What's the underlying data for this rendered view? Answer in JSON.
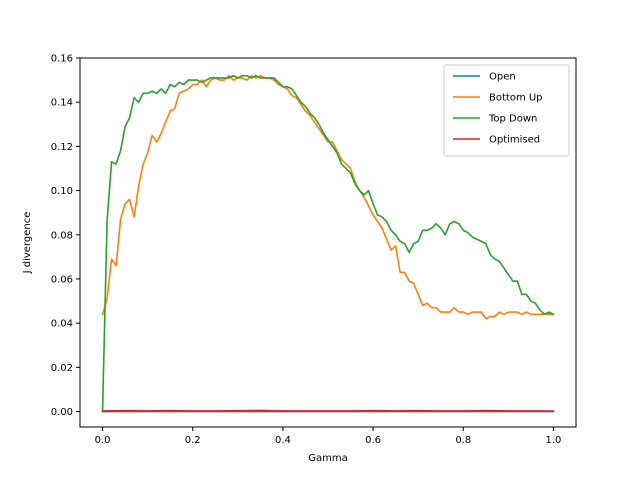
{
  "chart_data": {
    "type": "line",
    "title": "",
    "xlabel": "Gamma",
    "ylabel": "J divergence",
    "xlim": [
      -0.05,
      1.05
    ],
    "ylim": [
      -0.007,
      0.16
    ],
    "xticks": [
      0.0,
      0.2,
      0.4,
      0.6,
      0.8,
      1.0
    ],
    "xtick_labels": [
      "0.0",
      "0.2",
      "0.4",
      "0.6",
      "0.8",
      "1.0"
    ],
    "yticks": [
      0.0,
      0.02,
      0.04,
      0.06,
      0.08,
      0.1,
      0.12,
      0.14,
      0.16
    ],
    "ytick_labels": [
      "0.00",
      "0.02",
      "0.04",
      "0.06",
      "0.08",
      "0.10",
      "0.12",
      "0.14",
      "0.16"
    ],
    "grid": false,
    "legend_position": "top-right",
    "series": [
      {
        "name": "Open",
        "color": "#1f77b4",
        "x": [
          0.0,
          0.1,
          0.2,
          0.3,
          0.4,
          0.5,
          0.6,
          0.7,
          0.8,
          0.9,
          1.0
        ],
        "y": [
          0.0,
          0.0,
          0.0,
          0.0,
          0.0,
          0.0,
          0.0,
          0.0,
          0.0,
          0.0,
          0.0
        ]
      },
      {
        "name": "Bottom Up",
        "color": "#ff7f0e",
        "x": [
          0.0,
          0.01,
          0.02,
          0.03,
          0.04,
          0.05,
          0.06,
          0.07,
          0.08,
          0.09,
          0.1,
          0.11,
          0.12,
          0.13,
          0.14,
          0.15,
          0.16,
          0.17,
          0.18,
          0.19,
          0.2,
          0.21,
          0.22,
          0.23,
          0.24,
          0.25,
          0.26,
          0.27,
          0.28,
          0.29,
          0.3,
          0.31,
          0.32,
          0.33,
          0.34,
          0.35,
          0.36,
          0.37,
          0.38,
          0.39,
          0.4,
          0.41,
          0.42,
          0.43,
          0.44,
          0.45,
          0.46,
          0.47,
          0.48,
          0.49,
          0.5,
          0.51,
          0.52,
          0.53,
          0.54,
          0.55,
          0.56,
          0.57,
          0.58,
          0.59,
          0.6,
          0.61,
          0.62,
          0.63,
          0.64,
          0.65,
          0.66,
          0.67,
          0.68,
          0.69,
          0.7,
          0.71,
          0.72,
          0.73,
          0.74,
          0.75,
          0.76,
          0.77,
          0.78,
          0.79,
          0.8,
          0.81,
          0.82,
          0.83,
          0.84,
          0.85,
          0.86,
          0.87,
          0.88,
          0.89,
          0.9,
          0.91,
          0.92,
          0.93,
          0.94,
          0.95,
          0.96,
          0.97,
          0.98,
          0.99,
          1.0
        ],
        "y": [
          0.044,
          0.051,
          0.069,
          0.066,
          0.087,
          0.094,
          0.096,
          0.088,
          0.102,
          0.112,
          0.117,
          0.125,
          0.122,
          0.126,
          0.131,
          0.136,
          0.137,
          0.144,
          0.145,
          0.146,
          0.148,
          0.148,
          0.15,
          0.147,
          0.15,
          0.151,
          0.15,
          0.15,
          0.152,
          0.15,
          0.151,
          0.151,
          0.15,
          0.152,
          0.151,
          0.152,
          0.151,
          0.151,
          0.15,
          0.148,
          0.147,
          0.146,
          0.143,
          0.142,
          0.139,
          0.136,
          0.134,
          0.131,
          0.128,
          0.125,
          0.122,
          0.122,
          0.118,
          0.114,
          0.112,
          0.11,
          0.104,
          0.1,
          0.097,
          0.093,
          0.089,
          0.086,
          0.083,
          0.078,
          0.073,
          0.075,
          0.063,
          0.063,
          0.059,
          0.058,
          0.053,
          0.048,
          0.049,
          0.047,
          0.047,
          0.045,
          0.045,
          0.045,
          0.047,
          0.045,
          0.045,
          0.044,
          0.045,
          0.045,
          0.045,
          0.042,
          0.043,
          0.043,
          0.045,
          0.044,
          0.045,
          0.045,
          0.045,
          0.044,
          0.045,
          0.044,
          0.044,
          0.044,
          0.044,
          0.044,
          0.044
        ]
      },
      {
        "name": "Top Down",
        "color": "#2ca02c",
        "x": [
          0.0,
          0.01,
          0.02,
          0.03,
          0.04,
          0.05,
          0.06,
          0.07,
          0.08,
          0.09,
          0.1,
          0.11,
          0.12,
          0.13,
          0.14,
          0.15,
          0.16,
          0.17,
          0.18,
          0.19,
          0.2,
          0.21,
          0.22,
          0.23,
          0.24,
          0.25,
          0.26,
          0.27,
          0.28,
          0.29,
          0.3,
          0.31,
          0.32,
          0.33,
          0.34,
          0.35,
          0.36,
          0.37,
          0.38,
          0.39,
          0.4,
          0.41,
          0.42,
          0.43,
          0.44,
          0.45,
          0.46,
          0.47,
          0.48,
          0.49,
          0.5,
          0.51,
          0.52,
          0.53,
          0.54,
          0.55,
          0.56,
          0.57,
          0.58,
          0.59,
          0.6,
          0.61,
          0.62,
          0.63,
          0.64,
          0.65,
          0.66,
          0.67,
          0.68,
          0.69,
          0.7,
          0.71,
          0.72,
          0.73,
          0.74,
          0.75,
          0.76,
          0.77,
          0.78,
          0.79,
          0.8,
          0.81,
          0.82,
          0.83,
          0.84,
          0.85,
          0.86,
          0.87,
          0.88,
          0.89,
          0.9,
          0.91,
          0.92,
          0.93,
          0.94,
          0.95,
          0.96,
          0.97,
          0.98,
          0.99,
          1.0
        ],
        "y": [
          0.0,
          0.086,
          0.113,
          0.112,
          0.118,
          0.129,
          0.133,
          0.142,
          0.14,
          0.144,
          0.144,
          0.145,
          0.144,
          0.146,
          0.144,
          0.148,
          0.147,
          0.149,
          0.148,
          0.15,
          0.15,
          0.15,
          0.149,
          0.15,
          0.151,
          0.151,
          0.151,
          0.151,
          0.151,
          0.152,
          0.151,
          0.152,
          0.152,
          0.151,
          0.152,
          0.151,
          0.151,
          0.151,
          0.151,
          0.149,
          0.147,
          0.147,
          0.146,
          0.143,
          0.14,
          0.138,
          0.135,
          0.133,
          0.13,
          0.126,
          0.123,
          0.12,
          0.117,
          0.112,
          0.11,
          0.108,
          0.103,
          0.1,
          0.098,
          0.1,
          0.094,
          0.089,
          0.088,
          0.086,
          0.082,
          0.08,
          0.077,
          0.076,
          0.072,
          0.076,
          0.077,
          0.082,
          0.082,
          0.083,
          0.085,
          0.083,
          0.08,
          0.085,
          0.086,
          0.085,
          0.082,
          0.081,
          0.079,
          0.078,
          0.077,
          0.076,
          0.071,
          0.069,
          0.068,
          0.065,
          0.062,
          0.059,
          0.059,
          0.053,
          0.053,
          0.05,
          0.049,
          0.046,
          0.044,
          0.045,
          0.044
        ]
      },
      {
        "name": "Optimised",
        "color": "#d62728",
        "x": [
          0.0,
          0.05,
          0.1,
          0.15,
          0.2,
          0.25,
          0.3,
          0.35,
          0.4,
          0.45,
          0.5,
          0.55,
          0.6,
          0.65,
          0.7,
          0.75,
          0.8,
          0.85,
          0.9,
          0.95,
          1.0
        ],
        "y": [
          0.0003,
          0.0004,
          0.0003,
          0.0004,
          0.0003,
          0.0003,
          0.0004,
          0.0005,
          0.0003,
          0.0003,
          0.0003,
          0.0003,
          0.0004,
          0.0003,
          0.0004,
          0.0003,
          0.0003,
          0.0004,
          0.0003,
          0.0003,
          0.0002
        ]
      }
    ]
  }
}
